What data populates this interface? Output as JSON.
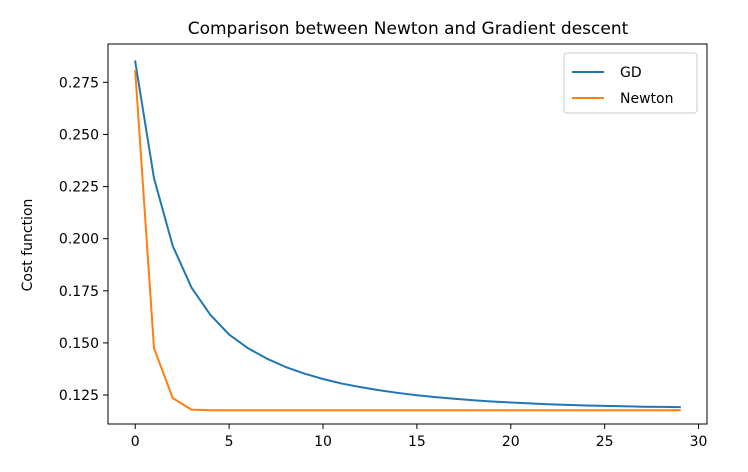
{
  "chart_data": {
    "type": "line",
    "title": "Comparison between Newton and Gradient descent",
    "xlabel": "",
    "ylabel": "Cost function",
    "xlim": [
      -1.45,
      30.45
    ],
    "ylim": [
      0.1111,
      0.2934
    ],
    "xticks": [
      0,
      5,
      10,
      15,
      20,
      25,
      30
    ],
    "xtick_labels": [
      "0",
      "5",
      "10",
      "15",
      "20",
      "25",
      "30"
    ],
    "yticks": [
      0.125,
      0.15,
      0.175,
      0.2,
      0.225,
      0.25,
      0.275
    ],
    "ytick_labels": [
      "0.125",
      "0.150",
      "0.175",
      "0.200",
      "0.225",
      "0.250",
      "0.275"
    ],
    "grid": false,
    "legend_position": "upper right",
    "x": [
      0,
      1,
      2,
      3,
      4,
      5,
      6,
      7,
      8,
      9,
      10,
      11,
      12,
      13,
      14,
      15,
      16,
      17,
      18,
      19,
      20,
      21,
      22,
      23,
      24,
      25,
      26,
      27,
      28,
      29
    ],
    "series": [
      {
        "name": "GD",
        "color": "#1f77b4",
        "values": [
          0.285,
          0.229,
          0.1965,
          0.1765,
          0.1635,
          0.154,
          0.1475,
          0.1425,
          0.1385,
          0.1353,
          0.1327,
          0.1305,
          0.1288,
          0.1273,
          0.126,
          0.1249,
          0.124,
          0.1232,
          0.1225,
          0.1219,
          0.1214,
          0.121,
          0.1206,
          0.1203,
          0.12,
          0.1198,
          0.1196,
          0.1194,
          0.1193,
          0.1192
        ]
      },
      {
        "name": "Newton",
        "color": "#ff7f0e",
        "values": [
          0.2805,
          0.1475,
          0.1235,
          0.118,
          0.1177,
          0.1177,
          0.1177,
          0.1177,
          0.1177,
          0.1177,
          0.1177,
          0.1177,
          0.1177,
          0.1177,
          0.1177,
          0.1177,
          0.1177,
          0.1177,
          0.1177,
          0.1177,
          0.1177,
          0.1177,
          0.1177,
          0.1177,
          0.1177,
          0.1177,
          0.1177,
          0.1177,
          0.1177,
          0.1177
        ]
      }
    ]
  }
}
